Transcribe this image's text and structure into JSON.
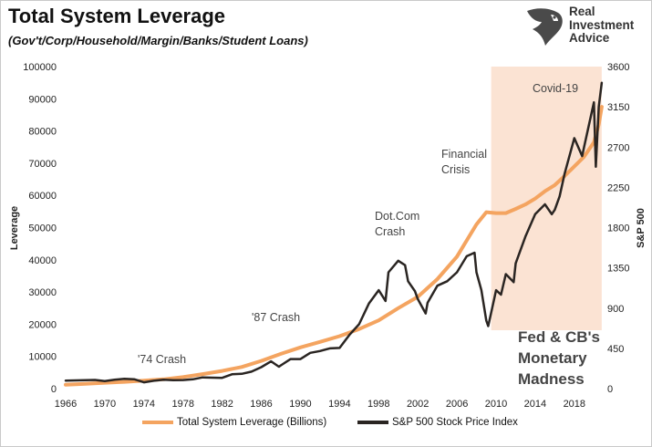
{
  "header": {
    "title": "Total System Leverage",
    "subtitle": "(Gov't/Corp/Household/Margin/Banks/Student Loans)"
  },
  "logo": {
    "line1": "Real",
    "line2": "Investment",
    "line3": "Advice"
  },
  "colors": {
    "leverage": "#f4a460",
    "sp500": "#2a2522",
    "highlight": "#fbe3d3"
  },
  "chart_data": {
    "type": "line",
    "title": "Total System Leverage",
    "subtitle": "(Gov't/Corp/Household/Margin/Banks/Student Loans)",
    "ylabel": "Leverage",
    "y2label": "S&P 500",
    "xlim": [
      1966,
      2021
    ],
    "ylim": [
      0,
      100000
    ],
    "y2lim": [
      0,
      3600
    ],
    "xticks": [
      "1966",
      "1970",
      "1974",
      "1978",
      "1982",
      "1986",
      "1990",
      "1994",
      "1998",
      "2002",
      "2006",
      "2010",
      "2014",
      "2018"
    ],
    "yticks": [
      "0",
      "10000",
      "20000",
      "30000",
      "40000",
      "50000",
      "60000",
      "70000",
      "80000",
      "90000",
      "100000"
    ],
    "y2ticks": [
      "0",
      "450",
      "900",
      "1350",
      "1800",
      "2250",
      "2700",
      "3150",
      "3600"
    ],
    "highlight_range": [
      2009.5,
      2020.8
    ],
    "legend_position": "bottom",
    "grid": false,
    "series": [
      {
        "name": "Total System Leverage (Billions)",
        "axis": "left",
        "x": [
          1966,
          1968,
          1970,
          1972,
          1974,
          1976,
          1978,
          1980,
          1982,
          1984,
          1986,
          1988,
          1990,
          1992,
          1994,
          1996,
          1998,
          2000,
          2002,
          2004,
          2006,
          2007,
          2008,
          2009,
          2010,
          2011,
          2012,
          2013,
          2014,
          2015,
          2016,
          2017,
          2018,
          2019,
          2020,
          2020.5,
          2020.8
        ],
        "values": [
          1200,
          1500,
          1800,
          2100,
          2500,
          2900,
          3600,
          4500,
          5500,
          6700,
          8600,
          10800,
          12800,
          14500,
          16300,
          18500,
          21200,
          25000,
          28500,
          34000,
          41000,
          46000,
          51000,
          54800,
          54500,
          54500,
          55800,
          57200,
          59000,
          61300,
          63200,
          66000,
          69000,
          72000,
          76500,
          82000,
          87500
        ]
      },
      {
        "name": "S&P 500 Stock Price Index",
        "axis": "right",
        "x": [
          1966,
          1967,
          1968,
          1969,
          1970,
          1971,
          1972,
          1973,
          1974,
          1975,
          1976,
          1977,
          1978,
          1979,
          1980,
          1981,
          1982,
          1983,
          1984,
          1985,
          1986,
          1987,
          1987.8,
          1988,
          1989,
          1990,
          1991,
          1992,
          1993,
          1994,
          1995,
          1996,
          1997,
          1998,
          1998.7,
          1999,
          2000,
          2000.7,
          2001,
          2001.7,
          2002,
          2002.8,
          2003,
          2004,
          2005,
          2006,
          2007,
          2007.8,
          2008,
          2008.5,
          2009,
          2009.2,
          2009.8,
          2010,
          2010.5,
          2011,
          2011.8,
          2012,
          2013,
          2014,
          2015,
          2015.7,
          2016,
          2016.5,
          2017,
          2018,
          2018.8,
          2019,
          2019.5,
          2020,
          2020.2,
          2020.5,
          2020.8
        ],
        "values": [
          90,
          92,
          95,
          97,
          85,
          100,
          110,
          105,
          70,
          88,
          100,
          95,
          96,
          104,
          125,
          122,
          120,
          160,
          165,
          190,
          240,
          305,
          245,
          260,
          330,
          330,
          400,
          420,
          450,
          455,
          600,
          720,
          950,
          1100,
          980,
          1300,
          1430,
          1380,
          1200,
          1090,
          1000,
          840,
          960,
          1150,
          1200,
          1300,
          1480,
          1520,
          1300,
          1100,
          760,
          700,
          1000,
          1100,
          1050,
          1280,
          1190,
          1400,
          1700,
          1950,
          2060,
          1950,
          2000,
          2150,
          2400,
          2800,
          2600,
          2700,
          2950,
          3200,
          2480,
          3150,
          3420
        ]
      }
    ],
    "annotations": [
      "'74 Crash",
      "'87 Crash",
      "Dot.Com",
      "Crash",
      "Financial",
      "Crisis",
      "Covid-19",
      "Fed & CB's",
      "Monetary",
      "Madness"
    ]
  }
}
